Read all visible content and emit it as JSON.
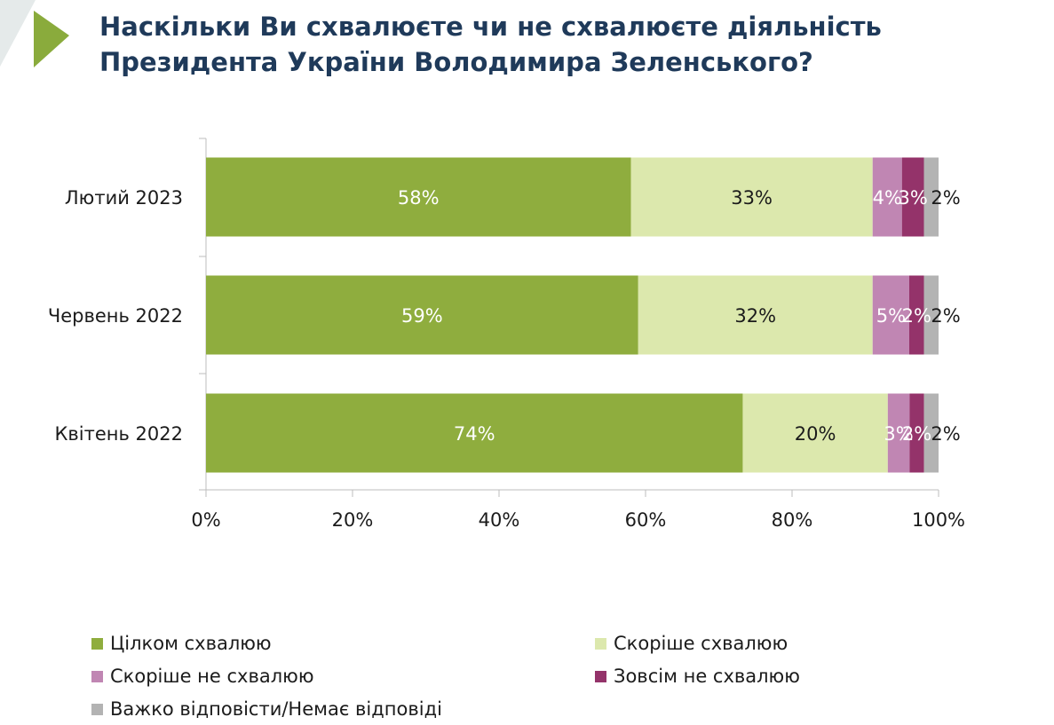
{
  "title_lines": [
    "Наскільки Ви схвалюєте чи не схвалюєте діяльність",
    "Президента України Володимира Зеленського?"
  ],
  "colors": {
    "title": "#1f3a5a",
    "arrow": "#8aab3c",
    "corner": "#dfe4e4"
  },
  "chart_data": {
    "type": "bar",
    "orientation": "horizontal",
    "stacked": true,
    "categories": [
      "Лютий 2023",
      "Червень 2022",
      "Квітень 2022"
    ],
    "series": [
      {
        "name": "Цілком схвалюю",
        "color": "#8fad3e",
        "values": [
          58,
          59,
          74
        ],
        "labels": [
          "58%",
          "59%",
          "74%"
        ],
        "label_color": "#ffffff"
      },
      {
        "name": "Скоріше схвалюю",
        "color": "#dce8ad",
        "values": [
          33,
          32,
          20
        ],
        "labels": [
          "33%",
          "32%",
          "20%"
        ],
        "label_color": "#1b1b1b"
      },
      {
        "name": "Скоріше не схвалюю",
        "color": "#c086b3",
        "values": [
          4,
          5,
          3
        ],
        "labels": [
          "4%",
          "5%",
          "3%"
        ],
        "label_color": "#ffffff"
      },
      {
        "name": "Зовсім не схвалюю",
        "color": "#94336a",
        "values": [
          3,
          2,
          2
        ],
        "labels": [
          "3%",
          "2%",
          "2%"
        ],
        "label_color": "#ffffff"
      },
      {
        "name": "Важко відповісти/Немає відповіді",
        "color": "#b3b3b3",
        "values": [
          2,
          2,
          2
        ],
        "labels": [
          "2%",
          "2%",
          "2%"
        ],
        "label_color": "#1b1b1b"
      }
    ],
    "xlim": [
      0,
      100
    ],
    "xticks": [
      "0%",
      "20%",
      "40%",
      "60%",
      "80%",
      "100%"
    ],
    "grid": false,
    "legend_position": "bottom"
  }
}
